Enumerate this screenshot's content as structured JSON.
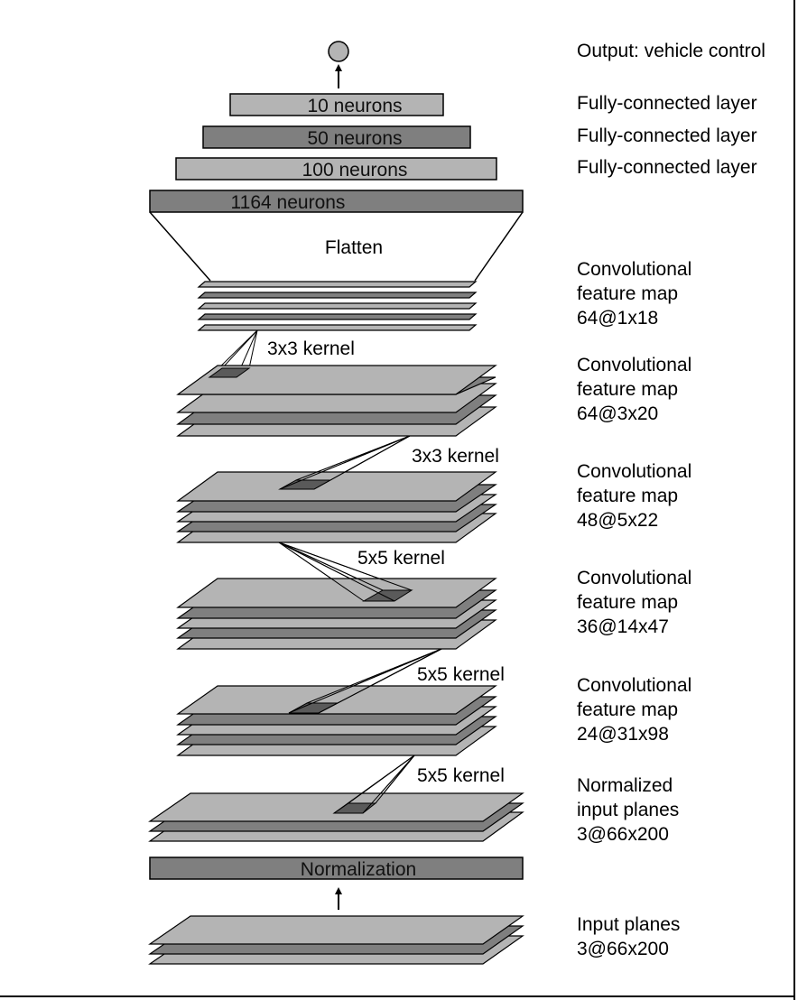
{
  "colors": {
    "light": "#b4b4b4",
    "dark": "#7f7f7f",
    "kernel": "#5a5a5a",
    "line": "#000000",
    "background": "#ffffff"
  },
  "right_labels": {
    "output": "Output: vehicle control",
    "fc10": "Fully-connected layer",
    "fc50": "Fully-connected layer",
    "fc100": "Fully-connected layer",
    "conv5": [
      "Convolutional",
      "feature map",
      "64@1x18"
    ],
    "conv4": [
      "Convolutional",
      "feature map",
      "64@3x20"
    ],
    "conv3": [
      "Convolutional",
      "feature map",
      "48@5x22"
    ],
    "conv2": [
      "Convolutional",
      "feature map",
      "36@14x47"
    ],
    "conv1": [
      "Convolutional",
      "feature map",
      "24@31x98"
    ],
    "normalized": [
      "Normalized",
      "input planes",
      "3@66x200"
    ],
    "input": [
      "Input planes",
      "3@66x200"
    ]
  },
  "layers": {
    "fc10": "10 neurons",
    "fc50": "50 neurons",
    "fc100": "100 neurons",
    "fc1164": "1164 neurons",
    "flatten": "Flatten",
    "normalization": "Normalization"
  },
  "kernels": {
    "k5": "3x3 kernel",
    "k4": "3x3 kernel",
    "k3": "5x5 kernel",
    "k2": "5x5 kernel",
    "k1": "5x5 kernel"
  }
}
